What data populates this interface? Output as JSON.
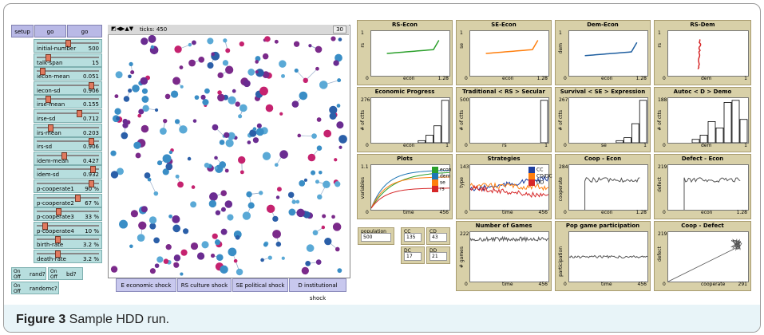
{
  "caption": {
    "label": "Figure 3",
    "text": " Sample HDD run."
  },
  "buttons": {
    "setup": "setup",
    "go1": "go",
    "go2": "go"
  },
  "sliders": [
    {
      "label": "initial-number",
      "value": "500",
      "level": 0.5
    },
    {
      "label": "talk-span",
      "value": "15",
      "level": 0.15
    },
    {
      "label": "iecon-mean",
      "value": "0.051",
      "level": 0.05
    },
    {
      "label": "iecon-sd",
      "value": "0.906",
      "level": 0.9
    },
    {
      "label": "irse-mean",
      "value": "0.155",
      "level": 0.15
    },
    {
      "label": "irse-sd",
      "value": "0.712",
      "level": 0.7
    },
    {
      "label": "irs-mean",
      "value": "0.203",
      "level": 0.2
    },
    {
      "label": "irs-sd",
      "value": "0.906",
      "level": 0.9
    },
    {
      "label": "idem-mean",
      "value": "0.427",
      "level": 0.43
    },
    {
      "label": "idem-sd",
      "value": "0.932",
      "level": 0.93
    },
    {
      "label": "p-cooperate1",
      "value": "90 %",
      "level": 0.9
    },
    {
      "label": "p-cooperate2",
      "value": "67 %",
      "level": 0.67
    },
    {
      "label": "p-cooperate3",
      "value": "33 %",
      "level": 0.33
    },
    {
      "label": "p-cooperate4",
      "value": "10 %",
      "level": 0.1
    },
    {
      "label": "birth-rate",
      "value": "3.2 %",
      "level": 0.32
    },
    {
      "label": "death-rate",
      "value": "3.2 %",
      "level": 0.32
    }
  ],
  "switches": {
    "on": "On",
    "off": "Off",
    "rand": "rand?",
    "bd": "bd?",
    "randomc": "randomc?"
  },
  "world": {
    "ticks": "ticks: 450",
    "speed": "30"
  },
  "shocks": [
    "E economic shock",
    "RS culture shock",
    "SE political shock",
    "D institutional shock"
  ],
  "monitors": {
    "population": {
      "label": "population",
      "value": "500"
    },
    "cc": {
      "label": "CC",
      "value": "135"
    },
    "cd": {
      "label": "CD",
      "value": "43"
    },
    "dc": {
      "label": "DC",
      "value": "17"
    },
    "dd": {
      "label": "DD",
      "value": "21"
    }
  },
  "colors": {
    "econ": "#2ca02c",
    "dem": "#1f77b4",
    "se": "#ff7f0e",
    "rs": "#d62728",
    "cc": "#1f3f9f",
    "cddc": "#ff7f0e",
    "dd": "#d62728"
  },
  "plots": [
    {
      "title": "RS-Econ",
      "ylabel": "rs",
      "xlabel": "econ",
      "ymax": "1",
      "xmin": "0",
      "xmax": "1.28",
      "color": "#2ca02c"
    },
    {
      "title": "SE-Econ",
      "ylabel": "se",
      "xlabel": "econ",
      "ymax": "1",
      "xmin": "0",
      "xmax": "1.28",
      "color": "#ff7f0e"
    },
    {
      "title": "Dem-Econ",
      "ylabel": "dem",
      "xlabel": "econ",
      "ymax": "1",
      "xmin": "0",
      "xmax": "1.28",
      "color": "#1f5fa0"
    },
    {
      "title": "RS-Dem",
      "ylabel": "rs",
      "xlabel": "dem",
      "ymax": "1",
      "xmin": "0",
      "xmax": "1",
      "color": "#d62728"
    },
    {
      "title": "Economic Progress",
      "ylabel": "# of ctts",
      "xlabel": "econ",
      "ymax": "276",
      "xmin": "0",
      "xmax": "1"
    },
    {
      "title": "Traditional < RS > Secular",
      "ylabel": "# of ctts",
      "xlabel": "rs",
      "ymax": "500",
      "xmin": "0",
      "xmax": "1"
    },
    {
      "title": "Survival < SE > Expression",
      "ylabel": "# of ctts",
      "xlabel": "se",
      "ymax": "267",
      "xmin": "0",
      "xmax": "1"
    },
    {
      "title": "Autoc < D > Demo",
      "ylabel": "# of ctts",
      "xlabel": "dem",
      "ymax": "188",
      "xmin": "0",
      "xmax": "1"
    },
    {
      "title": "Plots",
      "ylabel": "variables",
      "xlabel": "time",
      "ymax": "1.1",
      "xmin": "0",
      "xmax": "456"
    },
    {
      "title": "Strategies",
      "ylabel": "type",
      "xlabel": "time",
      "ymax": "143",
      "xmin": "0",
      "xmax": "456"
    },
    {
      "title": "Coop - Econ",
      "ylabel": "cooperate",
      "xlabel": "econ",
      "ymax": "284",
      "xmin": "0",
      "xmax": "1.28"
    },
    {
      "title": "Defect - Econ",
      "ylabel": "defect",
      "xlabel": "econ",
      "ymax": "219",
      "xmin": "0",
      "xmax": "1.28"
    },
    {
      "title": "Number of Games",
      "ylabel": "# games",
      "xlabel": "time",
      "ymax": "222",
      "xmin": "0",
      "xmax": "456"
    },
    {
      "title": "Pop game participation",
      "ylabel": "participation",
      "xlabel": "time",
      "ymax": "",
      "xmin": "0",
      "xmax": "456"
    },
    {
      "title": "Coop - Defect",
      "ylabel": "defect",
      "xlabel": "cooperate",
      "ymax": "219",
      "xmin": "0",
      "xmax": "291"
    }
  ],
  "plots_legend": [
    {
      "name": "econ",
      "color": "#2ca02c"
    },
    {
      "name": "dem",
      "color": "#1f77b4"
    },
    {
      "name": "se",
      "color": "#ff7f0e"
    },
    {
      "name": "rs",
      "color": "#d62728"
    }
  ],
  "strategies_legend": [
    {
      "name": "CC",
      "color": "#1f3f9f"
    },
    {
      "name": "CD/DC",
      "color": "#ff7f0e"
    },
    {
      "name": "DD",
      "color": "#d62728"
    }
  ],
  "histograms": [
    [
      0,
      0,
      0,
      0,
      0,
      0,
      0.05,
      0.18,
      0.4,
      1
    ],
    [
      0,
      0,
      0,
      0,
      0,
      0,
      0,
      0,
      0,
      1
    ],
    [
      0,
      0,
      0,
      0,
      0,
      0,
      0.05,
      0.12,
      0.45,
      1
    ],
    [
      0,
      0,
      0,
      0.08,
      0.18,
      0.5,
      0.35,
      0.95,
      1,
      0.55
    ]
  ]
}
